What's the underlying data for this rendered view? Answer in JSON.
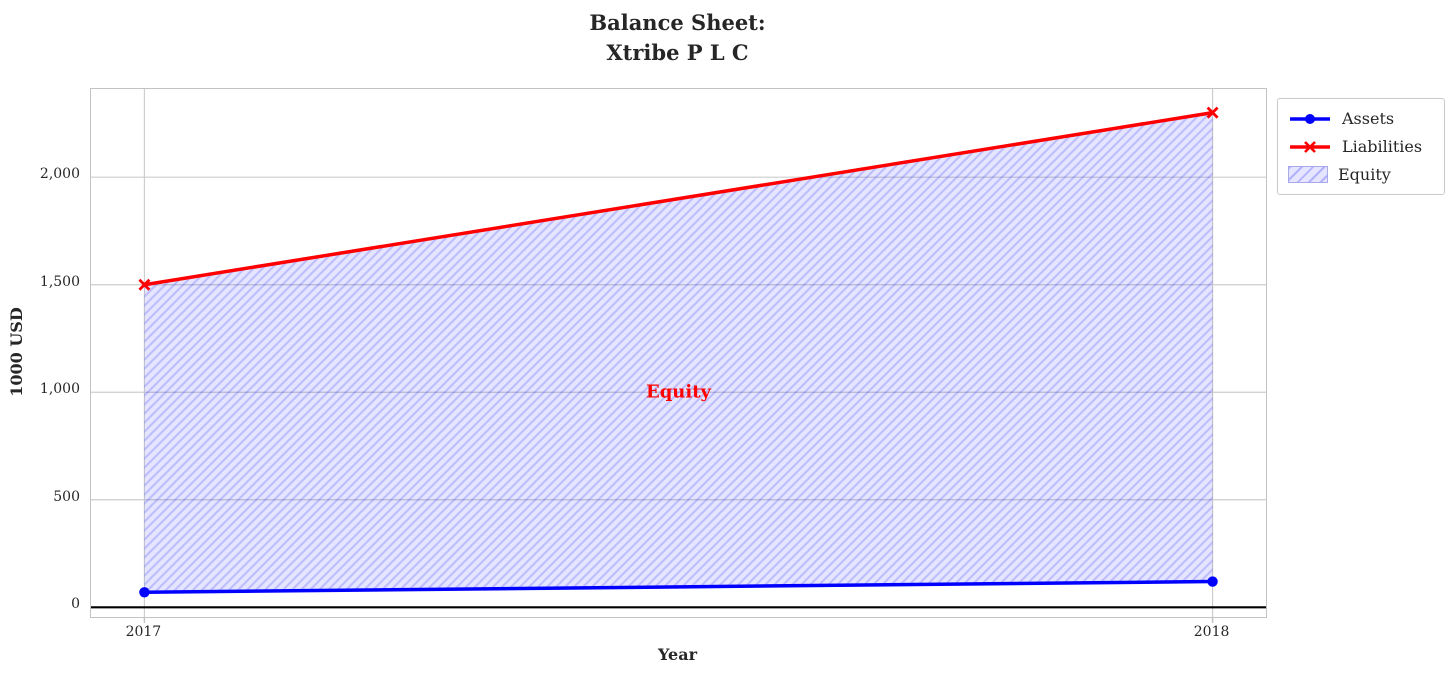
{
  "chart_data": {
    "type": "line",
    "title": "Balance Sheet:\nXtribe P L C",
    "title_lines": [
      "Balance Sheet:",
      "Xtribe P L C"
    ],
    "xlabel": "Year",
    "ylabel": "1000 USD",
    "x": [
      2017,
      2018
    ],
    "series": [
      {
        "name": "Assets",
        "values": [
          70,
          120
        ],
        "color": "#0000ff",
        "marker": "circle",
        "line_width": 3.5
      },
      {
        "name": "Liabilities",
        "values": [
          1500,
          2300
        ],
        "color": "#ff0000",
        "marker": "x",
        "line_width": 3.5
      }
    ],
    "fill_between": {
      "name": "Equity",
      "lower_series": "Assets",
      "upper_series": "Liabilities",
      "hatch": "/",
      "base_color": "#0000ff",
      "fill_alpha": 0.1,
      "hatch_alpha": 0.17
    },
    "annotation": {
      "text": "Equity",
      "x": 2017.5,
      "y": 1000,
      "color": "#ff0000"
    },
    "xticks": [
      2017,
      2018
    ],
    "xtick_labels": [
      "2017",
      "2018"
    ],
    "yticks": [
      0,
      500,
      1000,
      1500,
      2000
    ],
    "ytick_labels": [
      "0",
      "500",
      "1,000",
      "1,500",
      "2,000"
    ],
    "xlim": [
      2016.95,
      2018.05
    ],
    "ylim": [
      -45,
      2410
    ],
    "zero_line": {
      "y": 0,
      "color": "#000000"
    },
    "grid": true,
    "legend_position": "outside-top-right",
    "legend_entries": [
      "Assets",
      "Liabilities",
      "Equity"
    ],
    "colors": {
      "grid": "#cdcdcd",
      "spine": "#c3c3c3",
      "text": "#262626",
      "background": "#ffffff"
    }
  }
}
